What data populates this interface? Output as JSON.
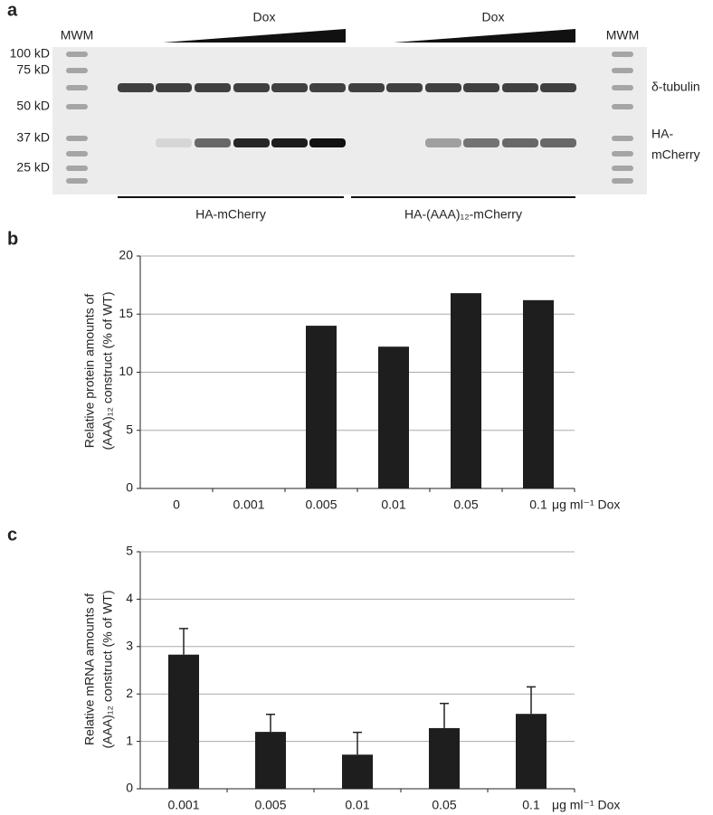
{
  "blot": {
    "panel_label": "a",
    "mwm_left": "MWM",
    "mwm_right": "MWM",
    "markers": [
      "100 kD",
      "75 kD",
      "50 kD",
      "37 kD",
      "25 kD"
    ],
    "dox_left": "Dox",
    "dox_right": "Dox",
    "band_labels": [
      "δ-tubulin",
      "HA-",
      "mCherry"
    ],
    "groups": [
      "HA-mCherry",
      "HA-(AAA)₁₂-mCherry"
    ]
  },
  "chart_data": [
    {
      "type": "bar",
      "panel_label": "b",
      "y_label": [
        "Relative protein amounts of",
        "(AAA)₁₂ construct (% of WT)"
      ],
      "x_unit": "μg ml⁻¹ Dox",
      "categories": [
        "0",
        "0.001",
        "0.005",
        "0.01",
        "0.05",
        "0.1"
      ],
      "values": [
        0,
        0,
        14.0,
        12.2,
        16.8,
        16.2
      ],
      "color": "#1e1e1e",
      "ylim": [
        0,
        20
      ],
      "yticks": [
        0,
        5,
        10,
        15,
        20
      ],
      "grid": true
    },
    {
      "type": "bar",
      "panel_label": "c",
      "y_label": [
        "Relative mRNA amounts of",
        "(AAA)₁₂ construct (% of WT)"
      ],
      "x_unit": "μg ml⁻¹ Dox",
      "categories": [
        "0.001",
        "0.005",
        "0.01",
        "0.05",
        "0.1"
      ],
      "values": [
        2.83,
        1.2,
        0.72,
        1.28,
        1.58
      ],
      "errors": [
        0.55,
        0.37,
        0.47,
        0.52,
        0.57
      ],
      "color": "#1e1e1e",
      "ylim": [
        0,
        5
      ],
      "yticks": [
        0,
        1,
        2,
        3,
        4,
        5
      ],
      "grid": true
    }
  ]
}
